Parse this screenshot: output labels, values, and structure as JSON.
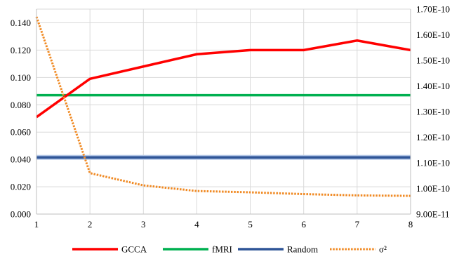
{
  "chart_data": {
    "type": "line",
    "x": [
      1,
      2,
      3,
      4,
      5,
      6,
      7,
      8
    ],
    "y_left_ticks": [
      "0.000",
      "0.020",
      "0.040",
      "0.060",
      "0.080",
      "0.100",
      "0.120",
      "0.140"
    ],
    "y_right_ticks": [
      "9.00E-11",
      "1.00E-10",
      "1.10E-10",
      "1.20E-10",
      "1.30E-10",
      "1.40E-10",
      "1.50E-10",
      "1.60E-10",
      "1.70E-10"
    ],
    "ylim_left": [
      0,
      0.15
    ],
    "ylim_right": [
      9e-11,
      1.7e-10
    ],
    "xlim": [
      1,
      8
    ],
    "grid": true,
    "legend_position": "bottom",
    "series": [
      {
        "name": "GCCA",
        "axis": "left",
        "color": "#ff0000",
        "style": "solid",
        "values": [
          0.071,
          0.099,
          0.108,
          0.117,
          0.12,
          0.12,
          0.127,
          0.12
        ]
      },
      {
        "name": "fMRI",
        "axis": "left",
        "color": "#00b050",
        "style": "solid",
        "values": [
          0.087,
          0.087,
          0.087,
          0.087,
          0.087,
          0.087,
          0.087,
          0.087
        ]
      },
      {
        "name": "Random",
        "axis": "left",
        "color": "#2f5597",
        "style": "solid",
        "values": [
          0.0415,
          0.0415,
          0.0415,
          0.0415,
          0.0415,
          0.0415,
          0.0415,
          0.0415
        ]
      },
      {
        "name": "σ²",
        "axis": "right",
        "color": "#f08a24",
        "style": "dotted",
        "values": [
          1.67e-10,
          1.06e-10,
          1.012e-10,
          9.9e-11,
          9.85e-11,
          9.78e-11,
          9.73e-11,
          9.71e-11
        ]
      }
    ]
  }
}
